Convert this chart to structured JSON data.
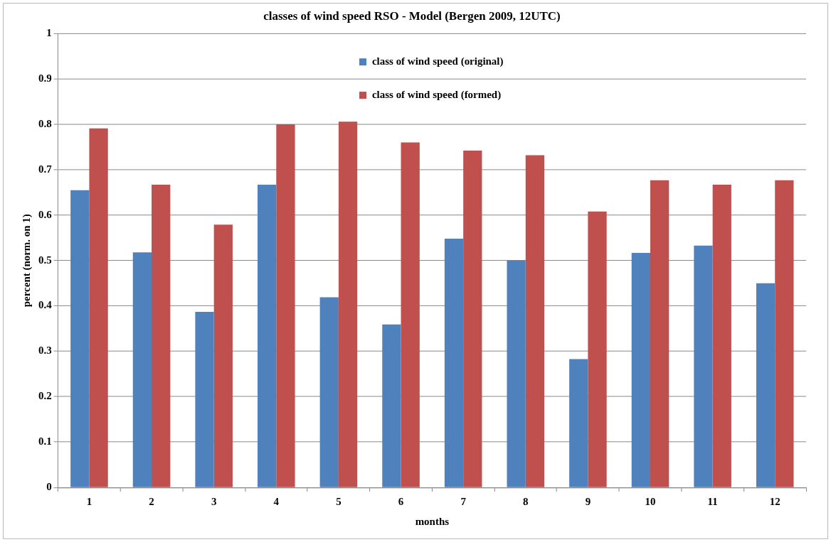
{
  "chart_data": {
    "type": "bar",
    "title": "classes of wind speed RSO - Model (Bergen 2009, 12UTC)",
    "xlabel": "months",
    "ylabel": "percent (norm. on 1)",
    "categories": [
      "1",
      "2",
      "3",
      "4",
      "5",
      "6",
      "7",
      "8",
      "9",
      "10",
      "11",
      "12"
    ],
    "series": [
      {
        "name": "class of wind speed (original)",
        "color": "#4f81bd",
        "values": [
          0.655,
          0.518,
          0.387,
          0.667,
          0.419,
          0.359,
          0.548,
          0.5,
          0.283,
          0.517,
          0.533,
          0.45
        ]
      },
      {
        "name": "class of wind speed (formed)",
        "color": "#c0504d",
        "values": [
          0.791,
          0.667,
          0.579,
          0.8,
          0.806,
          0.76,
          0.742,
          0.732,
          0.608,
          0.677,
          0.667,
          0.677
        ]
      }
    ],
    "ylim": [
      0,
      1
    ],
    "yticks": [
      0,
      0.1,
      0.2,
      0.3,
      0.4,
      0.5,
      0.6,
      0.7,
      0.8,
      0.9,
      1
    ],
    "grid": "y",
    "legend": "top"
  }
}
